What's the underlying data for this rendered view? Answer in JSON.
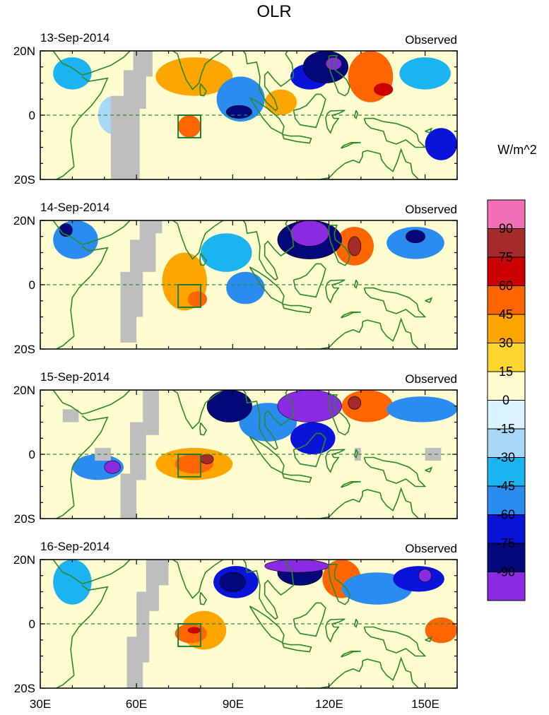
{
  "chart_data": {
    "type": "heatmap",
    "title": "OLR",
    "colorbar": {
      "unit_label": "W/m^2",
      "levels": [
        90,
        75,
        60,
        45,
        30,
        15,
        0,
        -15,
        -30,
        -45,
        -60,
        -75,
        -90
      ],
      "colors": [
        "#f26fb5",
        "#a52a2a",
        "#cc0000",
        "#ff6600",
        "#ffa500",
        "#ffd630",
        "#fffcd0",
        "#d9f3ff",
        "#a8d8f8",
        "#1bb3f0",
        "#2b8cf0",
        "#0a14d8",
        "#05087a",
        "#8a2be2"
      ]
    },
    "x_axis": {
      "ticks": [
        "30E",
        "60E",
        "90E",
        "120E",
        "150E"
      ],
      "tick_values": [
        30,
        60,
        90,
        120,
        150
      ],
      "range": [
        30,
        160
      ]
    },
    "y_axis": {
      "ticks": [
        "20N",
        "0",
        "20S"
      ],
      "tick_values": [
        20,
        0,
        -20
      ],
      "range": [
        -20,
        20
      ]
    },
    "panels": [
      {
        "date": "13-Sep-2014",
        "label": "Observed",
        "features": [
          {
            "lon": [
              48,
              58
            ],
            "lat": [
              -6,
              6
            ],
            "level": -15
          },
          {
            "lon": [
              34,
              46
            ],
            "lat": [
              8,
              18
            ],
            "level": -30
          },
          {
            "lon": [
              66,
              90
            ],
            "lat": [
              6,
              18
            ],
            "level": 30
          },
          {
            "lon": [
              73,
              80
            ],
            "lat": [
              -7,
              0
            ],
            "level": 45
          },
          {
            "lon": [
              85,
              100
            ],
            "lat": [
              -2,
              12
            ],
            "level": -45
          },
          {
            "lon": [
              88,
              96
            ],
            "lat": [
              -1,
              3
            ],
            "level": -75
          },
          {
            "lon": [
              100,
              110
            ],
            "lat": [
              0,
              8
            ],
            "level": 30
          },
          {
            "lon": [
              108,
              120
            ],
            "lat": [
              8,
              16
            ],
            "level": -60
          },
          {
            "lon": [
              112,
              126
            ],
            "lat": [
              10,
              20
            ],
            "level": -75
          },
          {
            "lon": [
              119,
              124
            ],
            "lat": [
              14,
              18
            ],
            "level": -90
          },
          {
            "lon": [
              126,
              140
            ],
            "lat": [
              4,
              20
            ],
            "level": 45
          },
          {
            "lon": [
              134,
              140
            ],
            "lat": [
              6,
              10
            ],
            "level": 60
          },
          {
            "lon": [
              142,
              158
            ],
            "lat": [
              8,
              18
            ],
            "level": -30
          },
          {
            "lon": [
              150,
              160
            ],
            "lat": [
              -14,
              -4
            ],
            "level": -60
          }
        ],
        "missing": [
          [
            52,
            57,
            -20,
            6
          ],
          [
            56,
            61,
            -20,
            14
          ],
          [
            59,
            63,
            2,
            20
          ],
          [
            62,
            65,
            12,
            20
          ]
        ]
      },
      {
        "date": "14-Sep-2014",
        "label": "Observed",
        "features": [
          {
            "lon": [
              34,
              48
            ],
            "lat": [
              8,
              20
            ],
            "level": -45
          },
          {
            "lon": [
              36,
              40
            ],
            "lat": [
              15,
              19
            ],
            "level": -75
          },
          {
            "lon": [
              68,
              82
            ],
            "lat": [
              -8,
              10
            ],
            "level": 30
          },
          {
            "lon": [
              76,
              82
            ],
            "lat": [
              -7,
              -2
            ],
            "level": 45
          },
          {
            "lon": [
              80,
              96
            ],
            "lat": [
              4,
              16
            ],
            "level": -30
          },
          {
            "lon": [
              88,
              100
            ],
            "lat": [
              -6,
              4
            ],
            "level": -45
          },
          {
            "lon": [
              104,
              124
            ],
            "lat": [
              8,
              20
            ],
            "level": -75
          },
          {
            "lon": [
              108,
              120
            ],
            "lat": [
              12,
              20
            ],
            "level": -90
          },
          {
            "lon": [
              122,
              134
            ],
            "lat": [
              6,
              18
            ],
            "level": 45
          },
          {
            "lon": [
              126,
              130
            ],
            "lat": [
              9,
              15
            ],
            "level": 75
          },
          {
            "lon": [
              138,
              156
            ],
            "lat": [
              8,
              18
            ],
            "level": -45
          },
          {
            "lon": [
              144,
              150
            ],
            "lat": [
              13,
              17
            ],
            "level": -75
          }
        ],
        "missing": [
          [
            55,
            60,
            -18,
            4
          ],
          [
            58,
            62,
            -10,
            14
          ],
          [
            61,
            66,
            4,
            20
          ],
          [
            65,
            68,
            16,
            20
          ]
        ]
      },
      {
        "date": "15-Sep-2014",
        "label": "Observed",
        "features": [
          {
            "lon": [
              40,
              56
            ],
            "lat": [
              -8,
              0
            ],
            "level": -45
          },
          {
            "lon": [
              50,
              55
            ],
            "lat": [
              -6,
              -2
            ],
            "level": -90
          },
          {
            "lon": [
              66,
              90
            ],
            "lat": [
              -8,
              2
            ],
            "level": 30
          },
          {
            "lon": [
              72,
              84
            ],
            "lat": [
              -6,
              0
            ],
            "level": 45
          },
          {
            "lon": [
              80,
              84
            ],
            "lat": [
              -3,
              0
            ],
            "level": 75
          },
          {
            "lon": [
              82,
              96
            ],
            "lat": [
              10,
              20
            ],
            "level": -75
          },
          {
            "lon": [
              92,
              110
            ],
            "lat": [
              4,
              16
            ],
            "level": -45
          },
          {
            "lon": [
              104,
              124
            ],
            "lat": [
              10,
              20
            ],
            "level": -90
          },
          {
            "lon": [
              108,
              122
            ],
            "lat": [
              0,
              10
            ],
            "level": -60
          },
          {
            "lon": [
              124,
              140
            ],
            "lat": [
              10,
              20
            ],
            "level": 45
          },
          {
            "lon": [
              126,
              130
            ],
            "lat": [
              14,
              18
            ],
            "level": 75
          },
          {
            "lon": [
              138,
              160
            ],
            "lat": [
              10,
              18
            ],
            "level": -45
          }
        ],
        "missing": [
          [
            37,
            42,
            10,
            14
          ],
          [
            47,
            52,
            -2,
            2
          ],
          [
            55,
            60,
            -20,
            -6
          ],
          [
            58,
            63,
            -8,
            10
          ],
          [
            62,
            67,
            6,
            20
          ],
          [
            128,
            130,
            -2,
            2
          ],
          [
            150,
            155,
            -2,
            2
          ]
        ]
      },
      {
        "date": "16-Sep-2014",
        "label": "Observed",
        "features": [
          {
            "lon": [
              34,
              46
            ],
            "lat": [
              6,
              20
            ],
            "level": -30
          },
          {
            "lon": [
              74,
              88
            ],
            "lat": [
              -8,
              4
            ],
            "level": 30
          },
          {
            "lon": [
              72,
              82
            ],
            "lat": [
              -6,
              0
            ],
            "level": 45
          },
          {
            "lon": [
              76,
              80
            ],
            "lat": [
              -3,
              -1
            ],
            "level": 60
          },
          {
            "lon": [
              84,
              98
            ],
            "lat": [
              8,
              18
            ],
            "level": -60
          },
          {
            "lon": [
              86,
              94
            ],
            "lat": [
              10,
              16
            ],
            "level": -75
          },
          {
            "lon": [
              100,
              120
            ],
            "lat": [
              16,
              20
            ],
            "level": -90
          },
          {
            "lon": [
              104,
              118
            ],
            "lat": [
              12,
              20
            ],
            "level": -75
          },
          {
            "lon": [
              118,
              130
            ],
            "lat": [
              8,
              20
            ],
            "level": 45
          },
          {
            "lon": [
              124,
              146
            ],
            "lat": [
              6,
              16
            ],
            "level": -45
          },
          {
            "lon": [
              140,
              156
            ],
            "lat": [
              10,
              18
            ],
            "level": -60
          },
          {
            "lon": [
              148,
              152
            ],
            "lat": [
              13,
              17
            ],
            "level": -90
          },
          {
            "lon": [
              150,
              160
            ],
            "lat": [
              -6,
              2
            ],
            "level": 45
          }
        ],
        "missing": [
          [
            57,
            62,
            -20,
            -4
          ],
          [
            60,
            64,
            -12,
            10
          ],
          [
            63,
            67,
            4,
            20
          ],
          [
            66,
            70,
            12,
            20
          ]
        ]
      }
    ],
    "region_box": {
      "lon": [
        73,
        80
      ],
      "lat": [
        -7,
        0
      ]
    }
  }
}
